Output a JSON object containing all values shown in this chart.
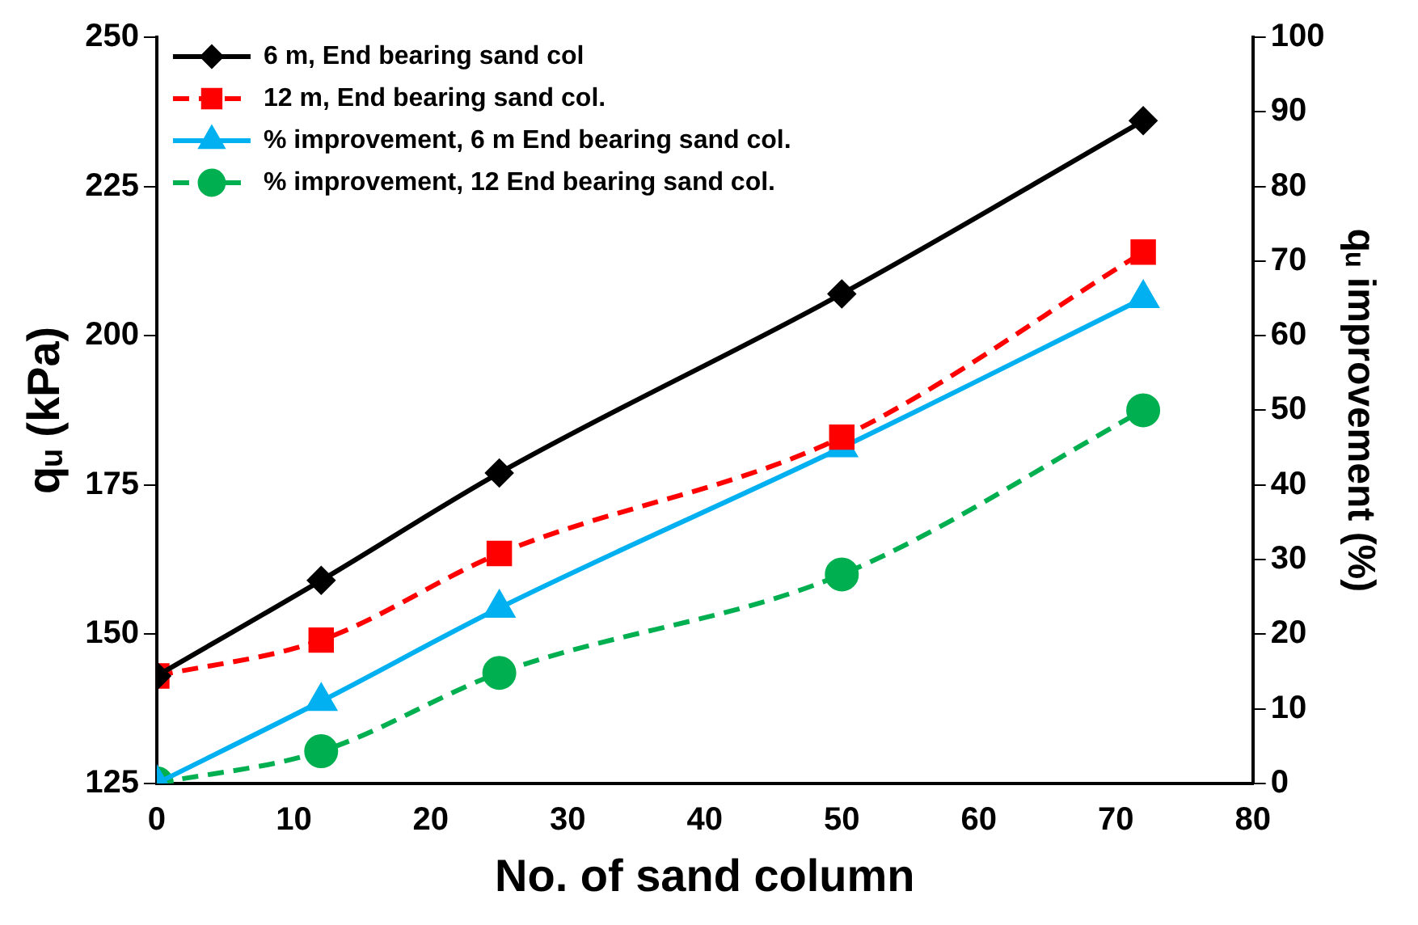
{
  "chart_data": {
    "type": "line",
    "xlabel": "No. of sand column",
    "ylabel": "qᵤ (kPa)",
    "y2label": "qᵤ improvement (%)",
    "xlim": [
      0,
      80
    ],
    "xticks": [
      0,
      10,
      20,
      30,
      40,
      50,
      60,
      70,
      80
    ],
    "ylim": [
      125,
      250
    ],
    "yticks": [
      125,
      150,
      175,
      200,
      225,
      250
    ],
    "y2lim": [
      0,
      100
    ],
    "y2ticks": [
      0,
      10,
      20,
      30,
      40,
      50,
      60,
      70,
      80,
      90,
      100
    ],
    "grid": false,
    "legend": "top left",
    "series": [
      {
        "name": "6 m, End bearing sand col",
        "color": "#000000",
        "marker": "diamond",
        "line_style": "solid",
        "x": [
          0,
          12,
          25,
          50,
          72
        ],
        "values": [
          143,
          159,
          177,
          207,
          236
        ]
      },
      {
        "name": "12 m, End bearing sand col.",
        "color": "#ff0000",
        "marker": "square",
        "line_style": "dashed",
        "x": [
          0,
          12,
          25,
          50,
          72
        ],
        "values": [
          143,
          149,
          163.5,
          183,
          214
        ]
      },
      {
        "name": "% improvement, 6 m End bearing sand col.",
        "color": "#00b0f0",
        "marker": "triangle",
        "line_style": "solid",
        "axis": "y2",
        "x": [
          0,
          12,
          25,
          50,
          72
        ],
        "values": [
          0,
          11,
          23.5,
          45,
          65
        ]
      },
      {
        "name": "% improvement, 12 End bearing sand col.",
        "color": "#00b050",
        "marker": "circle",
        "line_style": "dashed",
        "axis": "y2",
        "x": [
          0,
          12,
          25,
          50,
          72
        ],
        "values": [
          0,
          4.3,
          14.8,
          28,
          50
        ]
      }
    ]
  }
}
